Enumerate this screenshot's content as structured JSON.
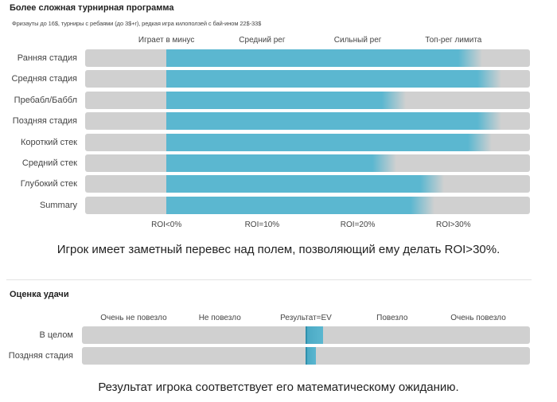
{
  "section1": {
    "title": "Более сложная турнирная программа",
    "subtitle": "Фризауты до 16$, турниры с ребаями (до 3$+r), редкая игра килоползей с бай-ином 22$-33$",
    "caption": "Игрок имеет заметный перевес над полем, позволяющий ему делать ROI>30%."
  },
  "section2": {
    "title": "Оценка удачи",
    "caption": "Результат игрока соответствует его математическому ожиданию."
  },
  "chart_data": [
    {
      "type": "bar",
      "orientation": "horizontal",
      "top_tick_labels": [
        "Играет в минус",
        "Средний рег",
        "Сильный рег",
        "Топ-рег лимита"
      ],
      "bottom_tick_labels": [
        "ROI<0%",
        "ROI=10%",
        "ROI=20%",
        "ROI>30%"
      ],
      "x_ticks": [
        0,
        10,
        20,
        30
      ],
      "xlim": [
        -8.5,
        38
      ],
      "categories": [
        "Ранняя стадия",
        "Средняя стадия",
        "Пребабл/Баббл",
        "Поздняя стадия",
        "Короткий стек",
        "Средний стек",
        "Глубокий стек",
        "Summary"
      ],
      "values": [
        33,
        35,
        25,
        35,
        34,
        24,
        29,
        28
      ],
      "bar_color": "#5bb7d0",
      "track_color": "#d0d0d0"
    },
    {
      "type": "bar",
      "orientation": "horizontal",
      "top_tick_labels": [
        "Очень не повезло",
        "Не повезло",
        "Результат=EV",
        "Повезло",
        "Очень повезло"
      ],
      "x_ticks": [
        -2,
        -1,
        0,
        1,
        2
      ],
      "xlim": [
        -2.6,
        2.6
      ],
      "categories": [
        "В целом",
        "Поздняя стадия"
      ],
      "values": [
        0.2,
        0.12
      ],
      "bar_color": "#5bb7d0",
      "track_color": "#d0d0d0"
    }
  ]
}
